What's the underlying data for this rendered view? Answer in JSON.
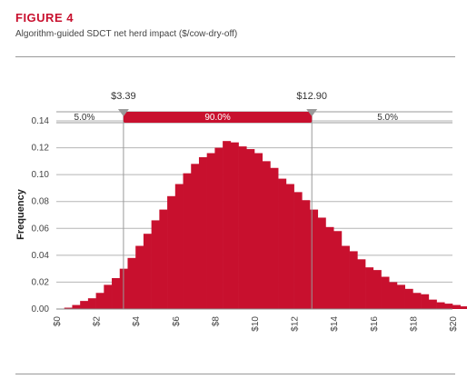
{
  "figure": {
    "label": "FIGURE 4",
    "subtitle": "Algorithm-guided SDCT net herd impact ($/cow-dry-off)"
  },
  "colors": {
    "accent": "#c8102e",
    "bar": "#c8102e",
    "marker": "#9a9a9a",
    "band": "#ffffff"
  },
  "chart_data": {
    "type": "bar",
    "title": "",
    "xlabel": "",
    "ylabel": "Frequency",
    "xlim": [
      0,
      20
    ],
    "ylim": [
      0,
      0.14
    ],
    "x_ticks": [
      "$0",
      "$2",
      "$4",
      "$6",
      "$8",
      "$10",
      "$12",
      "$14",
      "$16",
      "$18",
      "$20"
    ],
    "x_tick_values": [
      0,
      2,
      4,
      6,
      8,
      10,
      12,
      14,
      16,
      18,
      20
    ],
    "y_ticks": [
      "0.00",
      "0.02",
      "0.04",
      "0.06",
      "0.08",
      "0.10",
      "0.12",
      "0.14"
    ],
    "y_tick_values": [
      0,
      0.02,
      0.04,
      0.06,
      0.08,
      0.1,
      0.12,
      0.14
    ],
    "bin_width": 0.4,
    "bin_start": 0.4,
    "values": [
      0.001,
      0.003,
      0.006,
      0.008,
      0.012,
      0.018,
      0.023,
      0.03,
      0.038,
      0.047,
      0.056,
      0.066,
      0.074,
      0.084,
      0.093,
      0.101,
      0.108,
      0.113,
      0.116,
      0.12,
      0.125,
      0.124,
      0.121,
      0.119,
      0.116,
      0.11,
      0.105,
      0.097,
      0.093,
      0.087,
      0.081,
      0.074,
      0.068,
      0.061,
      0.058,
      0.047,
      0.043,
      0.037,
      0.031,
      0.029,
      0.024,
      0.02,
      0.018,
      0.015,
      0.012,
      0.011,
      0.007,
      0.005,
      0.004,
      0.003,
      0.002,
      0.002,
      0.002,
      0.001,
      0.001
    ],
    "band": {
      "lower_value": 3.39,
      "upper_value": 12.9,
      "lower_label": "$3.39",
      "upper_label": "$12.90",
      "left_pct": "5.0%",
      "middle_pct": "90.0%",
      "right_pct": "5.0%"
    },
    "grid": true,
    "legend": "none"
  }
}
